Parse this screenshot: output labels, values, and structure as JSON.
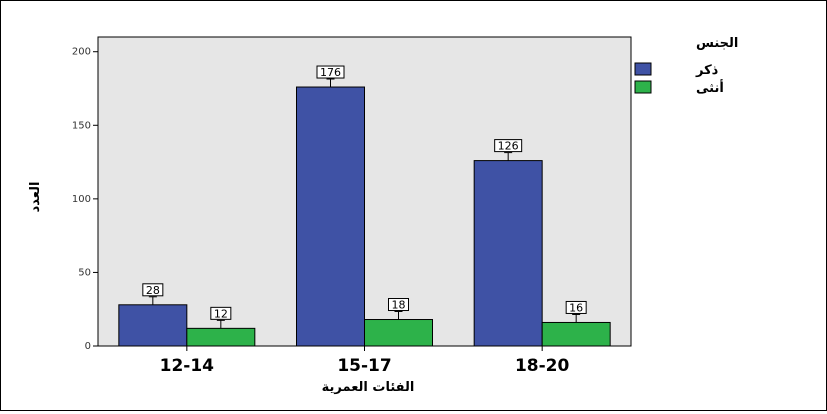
{
  "chart_data": {
    "type": "bar",
    "title": "",
    "xlabel": "الفئات العمرية",
    "ylabel": "العدد",
    "categories": [
      "12-14",
      "15-17",
      "18-20"
    ],
    "series": [
      {
        "name": "ذكر",
        "values": [
          28,
          176,
          126
        ],
        "color": "#3f52a5"
      },
      {
        "name": "أنثى",
        "values": [
          12,
          18,
          16
        ],
        "color": "#2db24a"
      }
    ],
    "ylim": [
      0,
      210
    ],
    "yticks": [
      0,
      50,
      100,
      150,
      200
    ],
    "grid": false,
    "legend": {
      "title": "الجنس",
      "position": "top-right"
    },
    "plot_background": "#e6e6e6",
    "error_bars": true
  }
}
